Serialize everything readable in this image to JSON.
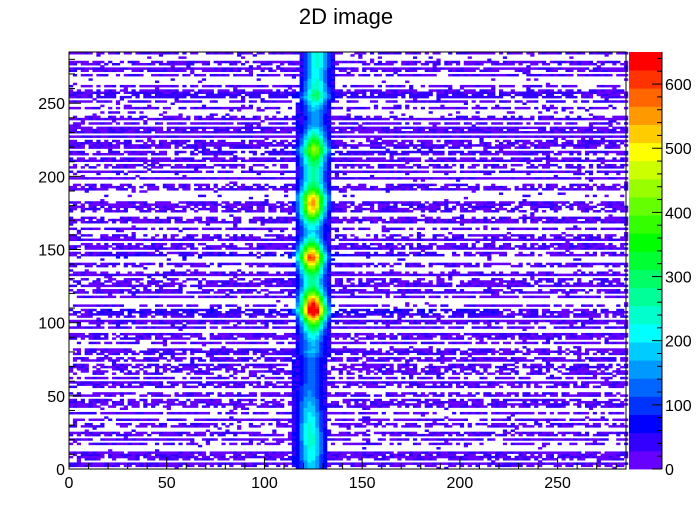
{
  "chart_data": {
    "type": "heatmap",
    "title": "2D image",
    "xlabel": "",
    "ylabel": "",
    "xlim": [
      0,
      285
    ],
    "ylim": [
      0,
      285
    ],
    "zlim": [
      0,
      650
    ],
    "x_ticks": [
      0,
      50,
      100,
      150,
      200,
      250
    ],
    "y_ticks": [
      0,
      50,
      100,
      150,
      200,
      250
    ],
    "z_ticks": [
      0,
      100,
      200,
      300,
      400,
      500,
      600
    ],
    "colorscale": [
      "#6600ff",
      "#3300ff",
      "#0000ff",
      "#0033ff",
      "#0066ff",
      "#0099ff",
      "#00ccff",
      "#00ffff",
      "#00ffcc",
      "#00ff99",
      "#00ff66",
      "#00ff33",
      "#00ff00",
      "#33ff00",
      "#66ff00",
      "#99ff00",
      "#ccff00",
      "#ffff00",
      "#ffcc00",
      "#ff9900",
      "#ff6600",
      "#ff3300",
      "#ff0000"
    ],
    "central_band": {
      "center_profile": [
        [
          0,
          124
        ],
        [
          50,
          123
        ],
        [
          100,
          125
        ],
        [
          150,
          124
        ],
        [
          200,
          125
        ],
        [
          250,
          126
        ],
        [
          285,
          127
        ]
      ],
      "peaks": [
        {
          "x": 125,
          "y": 110,
          "value": 650
        },
        {
          "x": 124,
          "y": 145,
          "value": 640
        },
        {
          "x": 125,
          "y": 180,
          "value": 560
        },
        {
          "x": 125,
          "y": 220,
          "value": 420
        },
        {
          "x": 126,
          "y": 255,
          "value": 300
        }
      ]
    },
    "horizontal_streaks": [
      {
        "y": 255,
        "x_range": [
          10,
          260
        ],
        "value": 60
      },
      {
        "y": 218,
        "x_range": [
          60,
          210
        ],
        "value": 55
      },
      {
        "y": 186,
        "x_range": [
          40,
          200
        ],
        "value": 50
      },
      {
        "y": 145,
        "x_range": [
          20,
          190
        ],
        "value": 70
      },
      {
        "y": 108,
        "x_range": [
          10,
          220
        ],
        "value": 65
      },
      {
        "y": 80,
        "x_range": [
          30,
          200
        ],
        "value": 35
      }
    ]
  }
}
